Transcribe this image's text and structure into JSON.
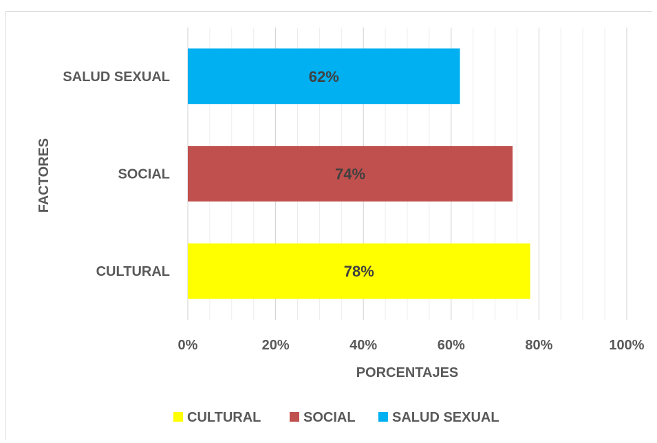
{
  "chart_data": {
    "type": "bar",
    "orientation": "horizontal",
    "categories": [
      "CULTURAL",
      "SOCIAL",
      "SALUD SEXUAL"
    ],
    "values": [
      78,
      74,
      62
    ],
    "data_labels": [
      "78%",
      "74%",
      "62%"
    ],
    "colors": [
      "#ffff00",
      "#c0504d",
      "#00b0f0"
    ],
    "xlabel": "PORCENTAJES",
    "ylabel": "FACTORES",
    "xlim": [
      0,
      100
    ],
    "x_ticks": [
      "0%",
      "20%",
      "40%",
      "60%",
      "80%",
      "100%"
    ],
    "grid": true,
    "legend": {
      "position": "bottom",
      "entries": [
        "CULTURAL",
        "SOCIAL",
        "SALUD SEXUAL"
      ]
    }
  }
}
